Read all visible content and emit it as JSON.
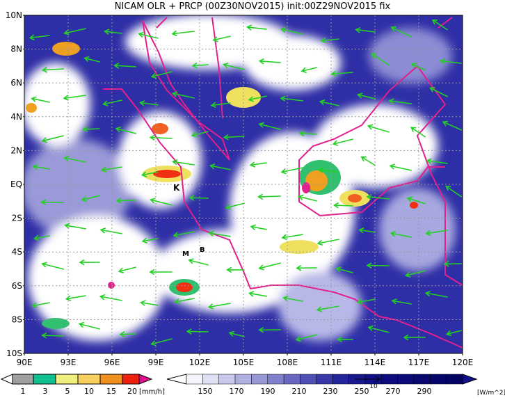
{
  "title": "NICAM OLR + PRCP (00Z30NOV2015) init:00Z29NOV2015 fix",
  "map": {
    "lat_labels": [
      "10N",
      "8N",
      "6N",
      "4N",
      "2N",
      "EQ",
      "2S",
      "4S",
      "6S",
      "8S",
      "10S"
    ],
    "lon_labels": [
      "90E",
      "93E",
      "96E",
      "99E",
      "102E",
      "105E",
      "108E",
      "111E",
      "114E",
      "117E",
      "120E"
    ],
    "markers": [
      "K",
      "M",
      "B"
    ]
  },
  "precip_legend": {
    "labels": [
      "1",
      "3",
      "5",
      "10",
      "15",
      "20"
    ],
    "unit": "[mm/h]"
  },
  "olr_legend": {
    "labels": [
      "150",
      "170",
      "190",
      "210",
      "230",
      "250",
      "270",
      "290"
    ],
    "unit": "[W/m^2]",
    "vector_scale": "10"
  }
}
